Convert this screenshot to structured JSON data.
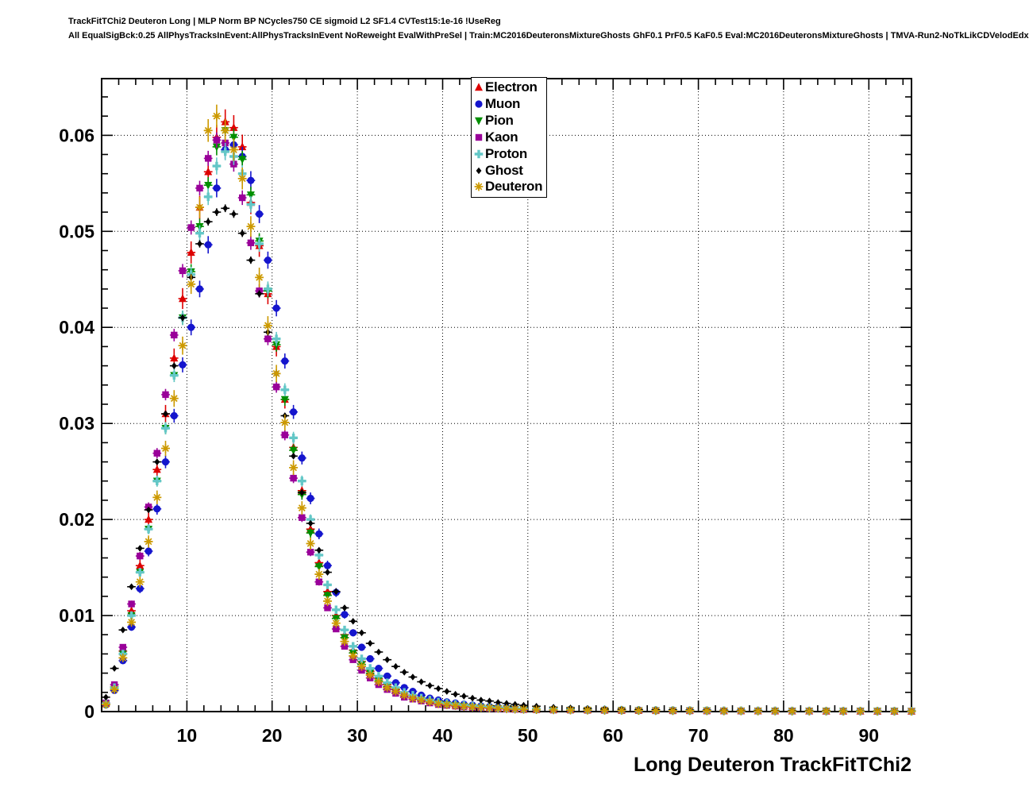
{
  "titles": {
    "line1": "TrackFitTChi2 Deuteron Long | MLP Norm BP NCycles750 CE sigmoid L2 SF1.4 CVTest15:1e-16 !UseReg",
    "line2": "All EqualSigBck:0.25 AllPhysTracksInEvent:AllPhysTracksInEvent NoReweight EvalWithPreSel | Train:MC2016DeuteronsMixtureGhosts GhF0.1 PrF0.5 KaF0.5 Eval:MC2016DeuteronsMixtureGhosts | TMVA-Run2-NoTkLikCDVelodEdx"
  },
  "chart_data": {
    "type": "scatter",
    "title": "",
    "xlabel": "Long Deuteron TrackFitTChi2",
    "ylabel": "",
    "xlim": [
      0,
      95
    ],
    "ylim": [
      0,
      0.0659
    ],
    "grid": "dotted",
    "legend_position": "top-center",
    "x_ticks": [
      10,
      20,
      30,
      40,
      50,
      60,
      70,
      80,
      90
    ],
    "y_ticks": [
      {
        "v": 0,
        "label": "0"
      },
      {
        "v": 0.01,
        "label": "0.01"
      },
      {
        "v": 0.02,
        "label": "0.02"
      },
      {
        "v": 0.03,
        "label": "0.03"
      },
      {
        "v": 0.04,
        "label": "0.04"
      },
      {
        "v": 0.05,
        "label": "0.05"
      },
      {
        "v": 0.06,
        "label": "0.06"
      }
    ],
    "x": [
      0.5,
      1.5,
      2.5,
      3.5,
      4.5,
      5.5,
      6.5,
      7.5,
      8.5,
      9.5,
      10.5,
      11.5,
      12.5,
      13.5,
      14.5,
      15.5,
      16.5,
      17.5,
      18.5,
      19.5,
      20.5,
      21.5,
      22.5,
      23.5,
      24.5,
      25.5,
      26.5,
      27.5,
      28.5,
      29.5,
      30.5,
      31.5,
      32.5,
      33.5,
      34.5,
      35.5,
      36.5,
      37.5,
      38.5,
      39.5,
      40.5,
      41.5,
      42.5,
      43.5,
      44.5,
      45.5,
      46.5,
      47.5,
      48.5,
      49.5,
      51,
      53,
      55,
      57,
      59,
      61,
      63,
      65,
      67,
      69,
      71,
      73,
      75,
      77,
      79,
      81,
      83,
      85,
      87,
      89,
      91,
      93,
      95
    ],
    "series": [
      {
        "name": "Electron",
        "marker": "triangle-up",
        "color": "#dd0000",
        "err_peak": 0.0013,
        "values": [
          0.00084,
          0.0026,
          0.0063,
          0.0105,
          0.0152,
          0.02,
          0.0252,
          0.031,
          0.0368,
          0.043,
          0.0478,
          0.0525,
          0.0562,
          0.0598,
          0.0614,
          0.0608,
          0.0588,
          0.053,
          0.0485,
          0.0435,
          0.038,
          0.0325,
          0.0275,
          0.023,
          0.019,
          0.0155,
          0.0125,
          0.01,
          0.008,
          0.0064,
          0.0052,
          0.0042,
          0.0034,
          0.0028,
          0.0023,
          0.0019,
          0.0016,
          0.0013,
          0.0011,
          0.0009,
          0.0008,
          0.0007,
          0.0006,
          0.00052,
          0.00046,
          0.0004,
          0.00036,
          0.00032,
          0.00028,
          0.00025,
          0.00022,
          0.0002,
          0.00018,
          0.00016,
          0.00015,
          0.00013,
          0.00012,
          0.00011,
          0.0001,
          0.0001,
          9e-05,
          8e-05,
          8e-05,
          7e-05,
          7e-05,
          6e-05,
          6e-05,
          5e-05,
          5e-05,
          5e-05,
          4e-05,
          4e-05,
          4e-05
        ]
      },
      {
        "name": "Muon",
        "marker": "circle",
        "color": "#1515cd",
        "err_peak": 0.001,
        "values": [
          0.0007,
          0.0022,
          0.0053,
          0.0088,
          0.0128,
          0.0167,
          0.0211,
          0.026,
          0.0308,
          0.0361,
          0.04,
          0.044,
          0.0486,
          0.0545,
          0.0585,
          0.059,
          0.0578,
          0.0553,
          0.0518,
          0.047,
          0.042,
          0.0365,
          0.0312,
          0.0264,
          0.0222,
          0.0185,
          0.0152,
          0.0124,
          0.0101,
          0.0082,
          0.0067,
          0.0055,
          0.0045,
          0.0037,
          0.003,
          0.0025,
          0.0021,
          0.0017,
          0.0014,
          0.0012,
          0.001,
          0.00089,
          0.00077,
          0.00067,
          0.00059,
          0.00052,
          0.00046,
          0.00041,
          0.00036,
          0.00032,
          0.00029,
          0.00026,
          0.00023,
          0.00021,
          0.00019,
          0.00017,
          0.00016,
          0.00014,
          0.00013,
          0.00013,
          0.00012,
          0.0001,
          0.0001,
          9e-05,
          9e-05,
          8e-05,
          8e-05,
          7e-05,
          7e-05,
          6e-05,
          5e-05,
          5e-05,
          5e-05
        ]
      },
      {
        "name": "Pion",
        "marker": "triangle-down",
        "color": "#008f00",
        "err_peak": 0.0009,
        "values": [
          0.0008,
          0.0025,
          0.006,
          0.01,
          0.0145,
          0.019,
          0.024,
          0.0295,
          0.035,
          0.041,
          0.0458,
          0.0505,
          0.0548,
          0.0588,
          0.0605,
          0.0598,
          0.0575,
          0.0538,
          0.049,
          0.0438,
          0.0382,
          0.0325,
          0.0272,
          0.0226,
          0.0186,
          0.0151,
          0.0121,
          0.0097,
          0.0077,
          0.0061,
          0.0049,
          0.004,
          0.0032,
          0.0026,
          0.0021,
          0.0017,
          0.0014,
          0.0012,
          0.001,
          0.00082,
          0.00072,
          0.00062,
          0.00054,
          0.00047,
          0.00041,
          0.00036,
          0.00032,
          0.00029,
          0.00025,
          0.00022,
          0.0002,
          0.00018,
          0.00016,
          0.00014,
          0.00013,
          0.00012,
          0.00011,
          0.0001,
          9e-05,
          9e-05,
          8e-05,
          7e-05,
          7e-05,
          6e-05,
          6e-05,
          5e-05,
          5e-05,
          5e-05,
          4e-05,
          4e-05,
          4e-05,
          4e-05,
          3e-05
        ]
      },
      {
        "name": "Kaon",
        "marker": "square",
        "color": "#990099",
        "err_peak": 0.0008,
        "values": [
          0.0009,
          0.0028,
          0.0067,
          0.0112,
          0.0162,
          0.0213,
          0.0269,
          0.033,
          0.0392,
          0.0459,
          0.0504,
          0.0545,
          0.0576,
          0.0595,
          0.0592,
          0.057,
          0.0535,
          0.0488,
          0.0438,
          0.0388,
          0.0338,
          0.0288,
          0.0243,
          0.0202,
          0.0166,
          0.0135,
          0.0108,
          0.0086,
          0.0068,
          0.0054,
          0.0043,
          0.0035,
          0.0028,
          0.0023,
          0.0019,
          0.0015,
          0.0013,
          0.0011,
          0.0009,
          0.00074,
          0.00065,
          0.00057,
          0.00049,
          0.00043,
          0.00038,
          0.00033,
          0.00029,
          0.00026,
          0.00023,
          0.0002,
          0.00018,
          0.00016,
          0.00015,
          0.00013,
          0.00012,
          0.00011,
          0.0001,
          9e-05,
          8e-05,
          8e-05,
          7e-05,
          7e-05,
          6e-05,
          6e-05,
          5e-05,
          5e-05,
          5e-05,
          4e-05,
          4e-05,
          4e-05,
          3e-05,
          3e-05,
          3e-05
        ]
      },
      {
        "name": "Proton",
        "marker": "cross",
        "color": "#63c7c7",
        "err_peak": 0.0009,
        "values": [
          0.0008,
          0.0025,
          0.006,
          0.01,
          0.0145,
          0.019,
          0.024,
          0.0295,
          0.035,
          0.041,
          0.0455,
          0.0498,
          0.0536,
          0.0568,
          0.0583,
          0.0578,
          0.056,
          0.0528,
          0.0487,
          0.044,
          0.0388,
          0.0335,
          0.0285,
          0.024,
          0.02,
          0.0163,
          0.0132,
          0.0106,
          0.0085,
          0.0068,
          0.0055,
          0.0045,
          0.0037,
          0.003,
          0.0025,
          0.002,
          0.0017,
          0.0014,
          0.0012,
          0.001,
          0.00086,
          0.00075,
          0.00065,
          0.00057,
          0.0005,
          0.00044,
          0.00039,
          0.00035,
          0.00031,
          0.00028,
          0.00025,
          0.00023,
          0.00021,
          0.00018,
          0.00017,
          0.00015,
          0.00014,
          0.00013,
          0.00012,
          0.00011,
          0.0001,
          9e-05,
          9e-05,
          8e-05,
          8e-05,
          7e-05,
          7e-05,
          6e-05,
          6e-05,
          6e-05,
          5e-05,
          5e-05,
          5e-05
        ]
      },
      {
        "name": "Ghost",
        "marker": "diamond",
        "color": "#000000",
        "err_peak": 0.0004,
        "values": [
          0.0015,
          0.0045,
          0.0085,
          0.013,
          0.017,
          0.021,
          0.026,
          0.031,
          0.036,
          0.041,
          0.0452,
          0.0487,
          0.051,
          0.052,
          0.0524,
          0.0518,
          0.0498,
          0.047,
          0.0435,
          0.0395,
          0.0352,
          0.0308,
          0.0266,
          0.0228,
          0.0196,
          0.0168,
          0.0145,
          0.0125,
          0.0108,
          0.0094,
          0.0082,
          0.0071,
          0.0062,
          0.0054,
          0.0047,
          0.0041,
          0.0036,
          0.0031,
          0.0027,
          0.0024,
          0.0021,
          0.0018,
          0.0016,
          0.0014,
          0.0012,
          0.0011,
          0.00095,
          0.00085,
          0.00075,
          0.00065,
          0.00055,
          0.00045,
          0.00038,
          0.00032,
          0.00028,
          0.00024,
          0.00021,
          0.00019,
          0.00017,
          0.00015,
          0.00014,
          0.00013,
          0.00012,
          0.00011,
          0.0001,
          9e-05,
          8e-05,
          8e-05,
          7e-05,
          7e-05,
          6e-05,
          6e-05,
          5e-05
        ]
      },
      {
        "name": "Deuteron",
        "marker": "star",
        "color": "#cc9900",
        "err_peak": 0.0012,
        "values": [
          0.00074,
          0.0023,
          0.0056,
          0.0093,
          0.0135,
          0.0177,
          0.0223,
          0.0274,
          0.0326,
          0.0381,
          0.0445,
          0.0525,
          0.0605,
          0.062,
          0.0605,
          0.0585,
          0.0555,
          0.0505,
          0.0452,
          0.0402,
          0.0352,
          0.0301,
          0.0254,
          0.0212,
          0.0175,
          0.0143,
          0.0115,
          0.0092,
          0.0073,
          0.0058,
          0.0047,
          0.0038,
          0.0031,
          0.0025,
          0.0021,
          0.0017,
          0.0014,
          0.0012,
          0.001,
          0.00081,
          0.00071,
          0.00062,
          0.00054,
          0.00047,
          0.00042,
          0.00037,
          0.00033,
          0.00029,
          0.00026,
          0.00023,
          0.0002,
          0.00018,
          0.00016,
          0.00015,
          0.00013,
          0.00012,
          0.00011,
          0.0001,
          9e-05,
          9e-05,
          8e-05,
          7e-05,
          7e-05,
          6e-05,
          6e-05,
          5e-05,
          5e-05,
          5e-05,
          4e-05,
          4e-05,
          4e-05,
          3e-05,
          3e-05
        ]
      }
    ]
  }
}
